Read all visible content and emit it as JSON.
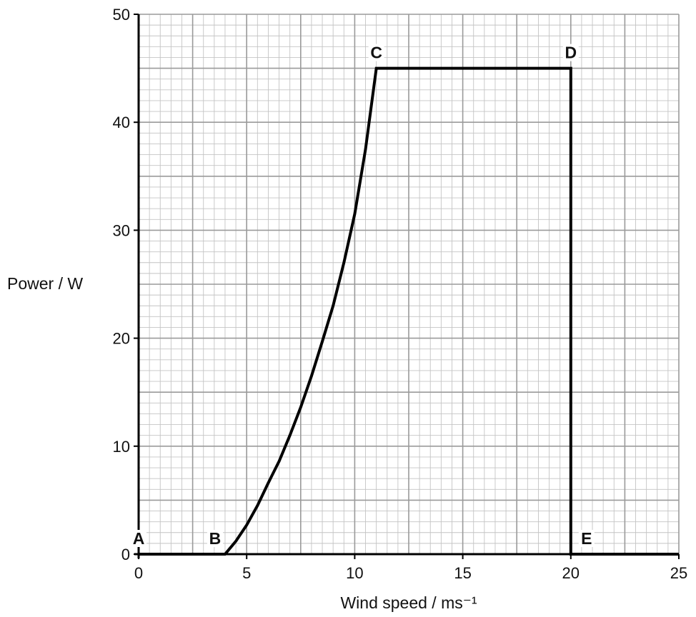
{
  "chart_data": {
    "type": "line",
    "title": "",
    "xlabel": "Wind speed / ms⁻¹",
    "ylabel": "Power / W",
    "xlim": [
      0,
      25
    ],
    "ylim": [
      0,
      50
    ],
    "x_ticks": [
      0,
      5,
      10,
      15,
      20,
      25
    ],
    "y_ticks": [
      0,
      10,
      20,
      30,
      40,
      50
    ],
    "grid": true,
    "grid_minor_step_x": 0.5,
    "grid_minor_step_y": 1,
    "grid_major_step_x": 5,
    "grid_major_step_y": 5,
    "series": [
      {
        "values": [
          [
            0,
            0
          ],
          [
            4,
            0
          ],
          [
            4.5,
            1.2
          ],
          [
            5,
            2.7
          ],
          [
            5.5,
            4.5
          ],
          [
            6,
            6.6
          ],
          [
            6.5,
            8.6
          ],
          [
            7,
            11
          ],
          [
            7.5,
            13.6
          ],
          [
            8,
            16.5
          ],
          [
            8.5,
            19.7
          ],
          [
            9,
            23
          ],
          [
            9.5,
            27
          ],
          [
            10,
            31.5
          ],
          [
            10.5,
            37.5
          ],
          [
            11,
            45
          ],
          [
            20,
            45
          ],
          [
            20,
            0
          ],
          [
            25,
            0
          ]
        ]
      }
    ],
    "annotations": [
      {
        "text": "A",
        "x": 0,
        "y": 0,
        "position": "above"
      },
      {
        "text": "B",
        "x": 4,
        "y": 0,
        "position": "above-left"
      },
      {
        "text": "C",
        "x": 11,
        "y": 45,
        "position": "above"
      },
      {
        "text": "D",
        "x": 20,
        "y": 45,
        "position": "above"
      },
      {
        "text": "E",
        "x": 20,
        "y": 0,
        "position": "above-right"
      }
    ],
    "colors": {
      "line": "#000000",
      "grid_minor": "#c4c4c4",
      "grid_major": "#9a9a9a",
      "axis": "#000000"
    }
  }
}
